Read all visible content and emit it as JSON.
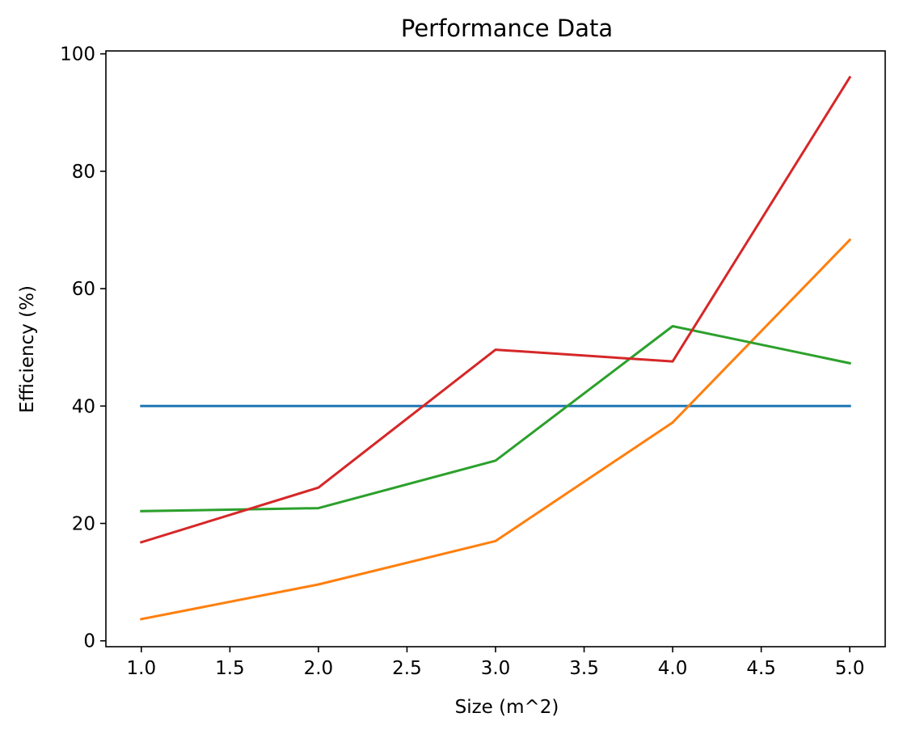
{
  "chart_data": {
    "type": "line",
    "title": "Performance Data",
    "xlabel": "Size (m^2)",
    "ylabel": "Efficiency (%)",
    "x": [
      1.0,
      2.0,
      3.0,
      4.0,
      5.0
    ],
    "xlim": [
      0.8,
      5.2
    ],
    "ylim": [
      -1,
      100.5
    ],
    "xticks": [
      1.0,
      1.5,
      2.0,
      2.5,
      3.0,
      3.5,
      4.0,
      4.5,
      5.0
    ],
    "xtick_labels": [
      "1.0",
      "1.5",
      "2.0",
      "2.5",
      "3.0",
      "3.5",
      "4.0",
      "4.5",
      "5.0"
    ],
    "yticks": [
      0,
      20,
      40,
      60,
      80,
      100
    ],
    "ytick_labels": [
      "0",
      "20",
      "40",
      "60",
      "80",
      "100"
    ],
    "grid": false,
    "legend": false,
    "series": [
      {
        "color": "#1f77b4",
        "values": [
          40.0,
          40.0,
          40.0,
          40.0,
          40.0
        ]
      },
      {
        "color": "#ff7f0e",
        "values": [
          3.7,
          9.6,
          17.0,
          37.2,
          68.3
        ]
      },
      {
        "color": "#2ca02c",
        "values": [
          22.1,
          22.6,
          30.7,
          53.6,
          47.3
        ]
      },
      {
        "color": "#d62728",
        "values": [
          16.8,
          26.1,
          49.6,
          47.6,
          96.0
        ]
      }
    ]
  }
}
